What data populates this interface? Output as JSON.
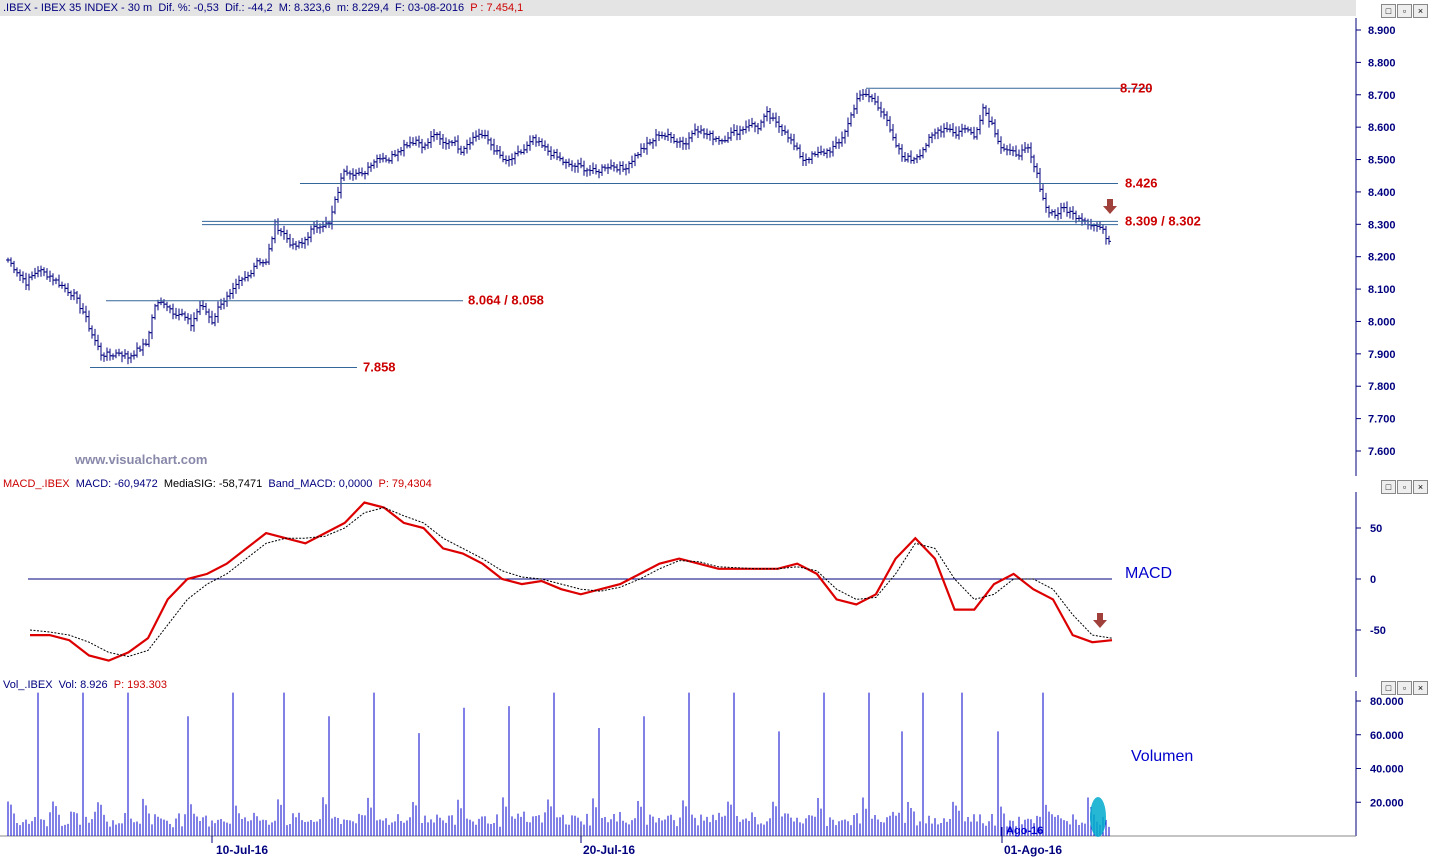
{
  "price_header": {
    "symbol": ".IBEX - IBEX 35 INDEX - ",
    "timeframe": "30 m",
    "dif_pct": "Dif. %: -0,53",
    "dif": "Dif.: -44,2",
    "max": "M: 8.323,6",
    "min": "m: 8.229,4",
    "date": "F: 03-08-2016",
    "p": "P : 7.454,1"
  },
  "macd_header": {
    "name": "MACD_.IBEX",
    "macd": "MACD: -60,9472",
    "signal": "MediaSIG: -58,7471",
    "band": "Band_MACD: 0,0000",
    "p": "P: 79,4304"
  },
  "vol_header": {
    "name": "Vol_.IBEX",
    "vol": "Vol: 8.926",
    "p": "P: 193.303"
  },
  "watermark": "www.visualchart.com",
  "panel_controls": [
    "□",
    "▫",
    "×"
  ],
  "chart_data": [
    {
      "type": "bar",
      "subtype": "ohlc",
      "ylim": [
        7550,
        8950
      ],
      "yticks": [
        "7.600",
        "7.700",
        "7.800",
        "7.900",
        "8.000",
        "8.100",
        "8.200",
        "8.300",
        "8.400",
        "8.500",
        "8.600",
        "8.700",
        "8.800",
        "8.900"
      ],
      "ytick_values": [
        7600,
        7700,
        7800,
        7900,
        8000,
        8100,
        8200,
        8300,
        8400,
        8500,
        8600,
        8700,
        8800,
        8900
      ],
      "xticks": [
        "10-Jul-16",
        "20-Jul-16",
        "01-Ago-16"
      ],
      "close_path": [
        [
          0,
          8190
        ],
        [
          6,
          8120
        ],
        [
          10,
          8160
        ],
        [
          14,
          8140
        ],
        [
          18,
          8110
        ],
        [
          22,
          8080
        ],
        [
          25,
          8030
        ],
        [
          28,
          7960
        ],
        [
          31,
          7900
        ],
        [
          34,
          7895
        ],
        [
          37,
          7905
        ],
        [
          40,
          7890
        ],
        [
          43,
          7910
        ],
        [
          46,
          7930
        ],
        [
          49,
          8050
        ],
        [
          52,
          8060
        ],
        [
          55,
          8030
        ],
        [
          58,
          8020
        ],
        [
          61,
          7990
        ],
        [
          64,
          8050
        ],
        [
          66,
          8030
        ],
        [
          68,
          8000
        ],
        [
          71,
          8060
        ],
        [
          74,
          8080
        ],
        [
          77,
          8120
        ],
        [
          80,
          8140
        ],
        [
          83,
          8190
        ],
        [
          86,
          8180
        ],
        [
          89,
          8300
        ],
        [
          92,
          8270
        ],
        [
          95,
          8230
        ],
        [
          98,
          8240
        ],
        [
          101,
          8280
        ],
        [
          104,
          8300
        ],
        [
          107,
          8300
        ],
        [
          109,
          8370
        ],
        [
          112,
          8470
        ],
        [
          115,
          8460
        ],
        [
          118,
          8450
        ],
        [
          121,
          8490
        ],
        [
          124,
          8510
        ],
        [
          127,
          8500
        ],
        [
          130,
          8530
        ],
        [
          133,
          8550
        ],
        [
          136,
          8560
        ],
        [
          139,
          8540
        ],
        [
          142,
          8580
        ],
        [
          145,
          8550
        ],
        [
          148,
          8560
        ],
        [
          151,
          8530
        ],
        [
          154,
          8560
        ],
        [
          157,
          8580
        ],
        [
          160,
          8560
        ],
        [
          163,
          8520
        ],
        [
          166,
          8490
        ],
        [
          169,
          8510
        ],
        [
          172,
          8530
        ],
        [
          175,
          8560
        ],
        [
          178,
          8540
        ],
        [
          181,
          8520
        ],
        [
          184,
          8500
        ],
        [
          187,
          8480
        ],
        [
          190,
          8480
        ],
        [
          193,
          8470
        ],
        [
          196,
          8460
        ],
        [
          199,
          8480
        ],
        [
          202,
          8480
        ],
        [
          205,
          8470
        ],
        [
          208,
          8500
        ],
        [
          211,
          8530
        ],
        [
          214,
          8550
        ],
        [
          217,
          8580
        ],
        [
          220,
          8570
        ],
        [
          223,
          8560
        ],
        [
          226,
          8550
        ],
        [
          229,
          8600
        ],
        [
          232,
          8580
        ],
        [
          235,
          8570
        ],
        [
          238,
          8560
        ],
        [
          241,
          8580
        ],
        [
          244,
          8590
        ],
        [
          247,
          8610
        ],
        [
          250,
          8600
        ],
        [
          253,
          8640
        ],
        [
          256,
          8610
        ],
        [
          259,
          8590
        ],
        [
          262,
          8540
        ],
        [
          265,
          8500
        ],
        [
          268,
          8510
        ],
        [
          271,
          8520
        ],
        [
          274,
          8530
        ],
        [
          277,
          8550
        ],
        [
          280,
          8610
        ],
        [
          283,
          8690
        ],
        [
          286,
          8700
        ],
        [
          289,
          8680
        ],
        [
          292,
          8640
        ],
        [
          295,
          8560
        ],
        [
          298,
          8510
        ],
        [
          301,
          8500
        ],
        [
          304,
          8520
        ],
        [
          307,
          8560
        ],
        [
          310,
          8590
        ],
        [
          313,
          8600
        ],
        [
          316,
          8580
        ],
        [
          319,
          8600
        ],
        [
          322,
          8570
        ],
        [
          325,
          8660
        ],
        [
          328,
          8610
        ],
        [
          331,
          8540
        ],
        [
          334,
          8520
        ],
        [
          337,
          8520
        ],
        [
          340,
          8530
        ],
        [
          343,
          8450
        ],
        [
          346,
          8350
        ],
        [
          349,
          8330
        ],
        [
          352,
          8350
        ],
        [
          355,
          8330
        ],
        [
          358,
          8320
        ],
        [
          361,
          8300
        ],
        [
          364,
          8290
        ],
        [
          367,
          8250
        ]
      ],
      "levels": [
        {
          "label": "8.720",
          "value": 8720
        },
        {
          "label": "8.426",
          "value": 8426
        },
        {
          "label": "8.309 / 8.302",
          "value": 8309,
          "value2": 8302
        },
        {
          "label": "8.064 / 8.058",
          "value": 8064
        },
        {
          "label": "7.858",
          "value": 7858
        }
      ],
      "colors": {
        "bars": "#00007f",
        "levels": "#336699",
        "level_text": "#cc0000",
        "arrow": "#a0403a"
      }
    },
    {
      "type": "line",
      "label": "MACD",
      "ylim": [
        -95,
        85
      ],
      "yticks": [
        "50",
        "0",
        "-50"
      ],
      "ytick_values": [
        50,
        0,
        -50
      ],
      "series": [
        {
          "name": "MACD",
          "color": "#dd0000",
          "values": [
            -55,
            -55,
            -60,
            -75,
            -80,
            -72,
            -58,
            -20,
            0,
            5,
            15,
            30,
            45,
            40,
            35,
            45,
            55,
            75,
            70,
            55,
            50,
            30,
            25,
            15,
            0,
            -5,
            -2,
            -10,
            -15,
            -10,
            -5,
            5,
            15,
            20,
            15,
            10,
            10,
            10,
            10,
            15,
            5,
            -20,
            -25,
            -15,
            20,
            40,
            20,
            -30,
            -30,
            -5,
            5,
            -10,
            -20,
            -55,
            -62,
            -60
          ]
        },
        {
          "name": "MediaSIG",
          "color": "#000000",
          "values": [
            -50,
            -52,
            -55,
            -62,
            -72,
            -76,
            -70,
            -45,
            -20,
            -5,
            5,
            20,
            35,
            40,
            40,
            42,
            50,
            65,
            70,
            62,
            55,
            40,
            30,
            20,
            8,
            2,
            0,
            -5,
            -10,
            -12,
            -8,
            0,
            10,
            18,
            17,
            12,
            11,
            10,
            10,
            12,
            8,
            -10,
            -20,
            -18,
            5,
            35,
            30,
            0,
            -20,
            -15,
            0,
            0,
            -10,
            -35,
            -55,
            -58
          ]
        }
      ]
    },
    {
      "type": "bar",
      "label": "Volumen",
      "ylim": [
        0,
        85000
      ],
      "yticks": [
        "20.000",
        "40.000",
        "60.000",
        "80.000"
      ],
      "ytick_values": [
        20000,
        40000,
        60000,
        80000
      ],
      "spikes": [
        [
          10,
          85000
        ],
        [
          25,
          85000
        ],
        [
          40,
          85000
        ],
        [
          60,
          71000
        ],
        [
          75,
          85000
        ],
        [
          92,
          85000
        ],
        [
          107,
          71000
        ],
        [
          122,
          85000
        ],
        [
          137,
          61000
        ],
        [
          152,
          76000
        ],
        [
          167,
          77000
        ],
        [
          182,
          85000
        ],
        [
          197,
          64000
        ],
        [
          212,
          71000
        ],
        [
          227,
          85000
        ],
        [
          242,
          85000
        ],
        [
          257,
          62000
        ],
        [
          272,
          85000
        ],
        [
          287,
          85000
        ],
        [
          298,
          62000
        ],
        [
          305,
          85000
        ],
        [
          318,
          85000
        ],
        [
          330,
          62000
        ],
        [
          345,
          85000
        ]
      ],
      "annotation": "Ago-16",
      "colors": {
        "bars": "#0000cc",
        "highlight": "#00aacc"
      }
    }
  ]
}
